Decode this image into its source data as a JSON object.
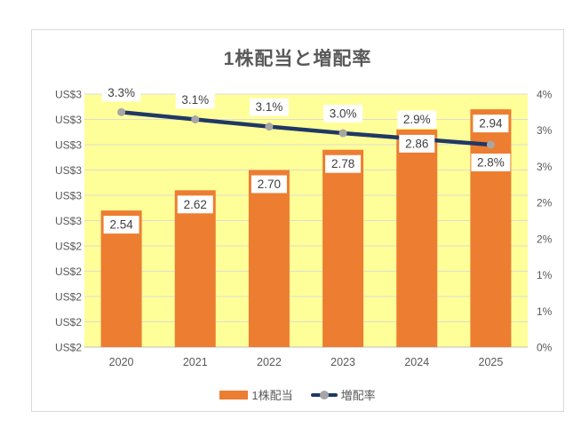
{
  "chart_data": {
    "type": "bar",
    "subtype": "bar-line-combo",
    "title": "1株配当と増配率",
    "categories": [
      "2020",
      "2021",
      "2022",
      "2023",
      "2024",
      "2025"
    ],
    "series": [
      {
        "name": "1株配当",
        "type": "bar",
        "axis": "left",
        "values": [
          2.54,
          2.62,
          2.7,
          2.78,
          2.86,
          2.94
        ],
        "labels": [
          "2.54",
          "2.62",
          "2.70",
          "2.78",
          "2.86",
          "2.94"
        ],
        "color": "#ED7D31"
      },
      {
        "name": "増配率",
        "type": "line",
        "axis": "right",
        "values": [
          3.25,
          3.15,
          3.05,
          2.96,
          2.88,
          2.8
        ],
        "labels": [
          "3.3%",
          "3.1%",
          "3.1%",
          "3.0%",
          "2.9%",
          "2.8%"
        ],
        "label_side": [
          "above",
          "above",
          "above",
          "above",
          "above",
          "below"
        ],
        "color": "#1F3864",
        "marker_color": "#A6A6A6"
      }
    ],
    "left_axis": {
      "range": [
        2.0,
        3.0
      ],
      "tick_step": 0.1,
      "tick_labels_top_to_bottom": [
        "US$3",
        "US$3",
        "US$3",
        "US$3",
        "US$3",
        "US$3",
        "US$2",
        "US$2",
        "US$2",
        "US$2",
        "US$2"
      ]
    },
    "right_axis": {
      "range": [
        0,
        3.5
      ],
      "tick_step": 0.5,
      "tick_labels_top_to_bottom": [
        "4%",
        "3%",
        "3%",
        "2%",
        "2%",
        "1%",
        "1%",
        "0%"
      ]
    },
    "grid": true,
    "legend_position": "bottom",
    "colors": {
      "plot_bg": "#FFFF99",
      "gridline": "#DCDCD0",
      "axis_line": "#BFBFBF",
      "tick_text": "#595959",
      "data_label_text": "#3F3F3F",
      "label_box_bg": "#FFFFFF",
      "chart_border": "#D9D9D9",
      "title_text": "#595959"
    }
  }
}
